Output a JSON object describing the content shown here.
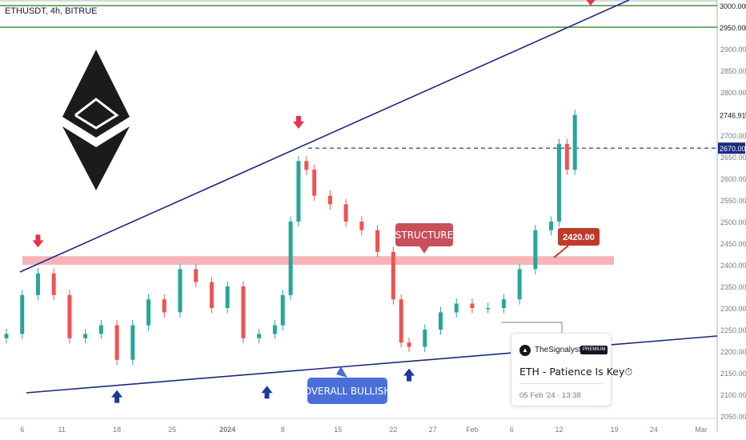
{
  "header": {
    "symbol": "ETHUSDT, 4h, BITRUE"
  },
  "colors": {
    "up": "#26a69a",
    "down": "#ef5350",
    "trend": "#1a2a80",
    "zone": "#f4a1a8",
    "label_red": "#c0392b",
    "label_structure": "#c94f5a",
    "label_blue": "#4a6fd8",
    "arrow_red": "#e8334a",
    "arrow_blue": "#1a3a9a",
    "resistance": "#1b7a1b"
  },
  "annotations": {
    "structure_label": "STRUCTURE",
    "overall_label": "OVERALL BULLISH",
    "price_label": "2420.00",
    "arrows_down": [
      "Dec 8",
      "Jan 10",
      "Feb 16"
    ],
    "arrows_up": [
      "Dec 18",
      "Jan 6",
      "Jan 24"
    ]
  },
  "card": {
    "author": "TheSignalyst",
    "badge": "PREMIUM",
    "title": "ETH - Patience Is Key⏱",
    "timestamp": "05 Feb '24 · 13:38"
  },
  "chart_data": {
    "type": "candlestick",
    "series": [
      {
        "name": "ETHUSDT",
        "x": [
          "Dec 4",
          "Dec 6",
          "Dec 8",
          "Dec 10",
          "Dec 12",
          "Dec 14",
          "Dec 16",
          "Dec 18",
          "Dec 20",
          "Dec 22",
          "Dec 24",
          "Dec 26",
          "Dec 28",
          "Dec 30",
          "Jan 1",
          "Jan 3",
          "Jan 5",
          "Jan 7",
          "Jan 8",
          "Jan 9",
          "Jan 10",
          "Jan 11",
          "Jan 12",
          "Jan 14",
          "Jan 16",
          "Jan 18",
          "Jan 20",
          "Jan 22",
          "Jan 23",
          "Jan 24",
          "Jan 26",
          "Jan 28",
          "Jan 30",
          "Feb 1",
          "Feb 3",
          "Feb 5",
          "Feb 7",
          "Feb 9",
          "Feb 11",
          "Feb 12",
          "Feb 13",
          "Feb 14"
        ],
        "y": [
          2240,
          2330,
          2380,
          2330,
          2230,
          2240,
          2260,
          2180,
          2260,
          2320,
          2290,
          2390,
          2360,
          2300,
          2350,
          2230,
          2240,
          2260,
          2330,
          2500,
          2640,
          2620,
          2560,
          2540,
          2500,
          2480,
          2430,
          2320,
          2220,
          2210,
          2250,
          2290,
          2310,
          2300,
          2300,
          2320,
          2390,
          2480,
          2500,
          2680,
          2620,
          2747
        ]
      }
    ],
    "key_levels": [
      3000.0,
      2950.0,
      2670.0,
      2420.0
    ],
    "last_price": 2746.91,
    "support_zone": [
      2400,
      2420
    ],
    "x_ticks": [
      "6",
      "11",
      "18",
      "25",
      "2024",
      "8",
      "15",
      "22",
      "27",
      "Feb",
      "6",
      "12",
      "19",
      "24",
      "Mar"
    ],
    "y_ticks": [
      3000,
      2950,
      2900,
      2850,
      2800,
      2750,
      2700,
      2650,
      2600,
      2550,
      2500,
      2450,
      2400,
      2350,
      2300,
      2250,
      2200,
      2150,
      2100,
      2050
    ],
    "ylim": [
      2040,
      3015
    ],
    "xlim": [
      "Dec 4",
      "Mar 1"
    ]
  }
}
